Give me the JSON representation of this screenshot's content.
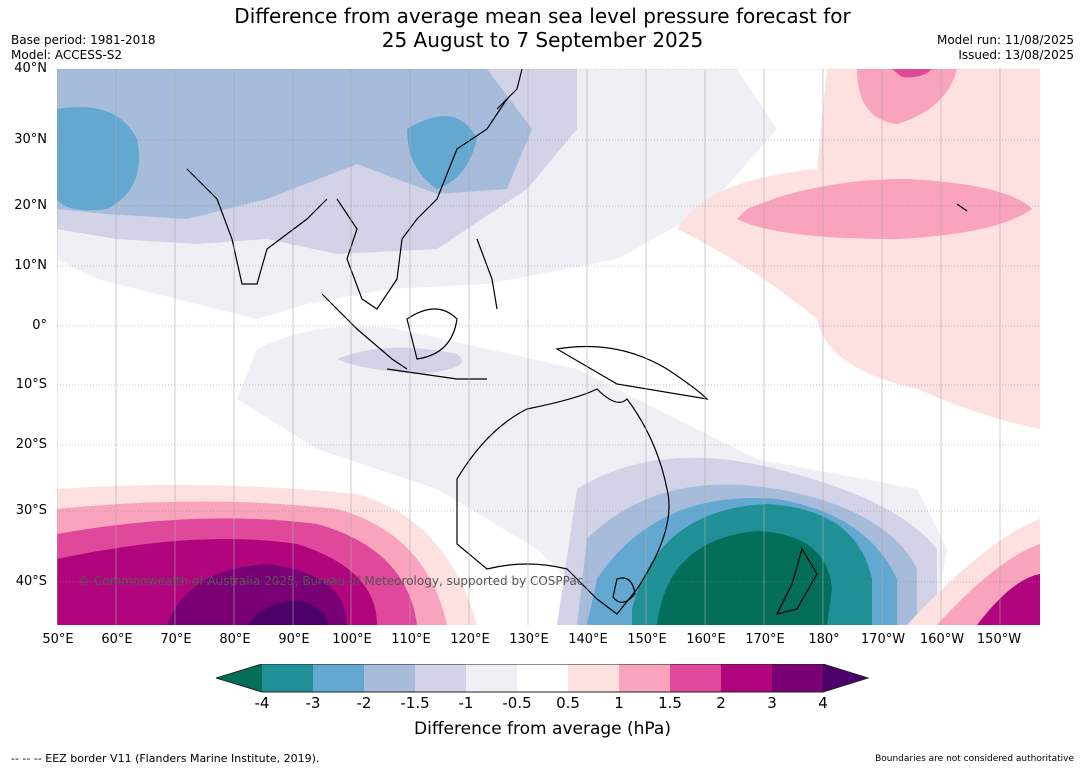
{
  "title_line1": "Difference from average mean sea level pressure forecast for",
  "title_line2": "25 August to 7 September 2025",
  "meta_left": [
    "Base period: 1981-2018",
    "Model: ACCESS-S2"
  ],
  "meta_right": [
    "Model run: 11/08/2025",
    "Issued: 13/08/2025"
  ],
  "lat_labels": [
    "40°N",
    "30°N",
    "20°N",
    "10°N",
    "0°",
    "10°S",
    "20°S",
    "30°S",
    "40°S"
  ],
  "lon_labels": [
    "50°E",
    "60°E",
    "70°E",
    "80°E",
    "90°E",
    "100°E",
    "110°E",
    "120°E",
    "130°E",
    "140°E",
    "150°E",
    "160°E",
    "170°E",
    "180°",
    "170°W",
    "160°W",
    "150°W"
  ],
  "credit": "© Commonwealth of Australia 2025, Bureau of Meteorology, supported by COSPPac",
  "colorbar": {
    "title": "Difference from average (hPa)",
    "labels": [
      "-4",
      "-3",
      "-2",
      "-1.5",
      "-1",
      "-0.5",
      "0.5",
      "1",
      "1.5",
      "2",
      "3",
      "4"
    ],
    "colors": [
      "#036e5a",
      "#1f9196",
      "#63a8d0",
      "#a7bcdb",
      "#d2d3e6",
      "#efeff6",
      "#ffffff",
      "#fde0e0",
      "#f9a3bd",
      "#e0489b",
      "#b0057d",
      "#7a0076",
      "#4b006a"
    ]
  },
  "footer_left": "--  --  -- EEZ border V11 (Flanders Marine Institute, 2019).",
  "footer_right": "Boundaries are not considered authoritative"
}
